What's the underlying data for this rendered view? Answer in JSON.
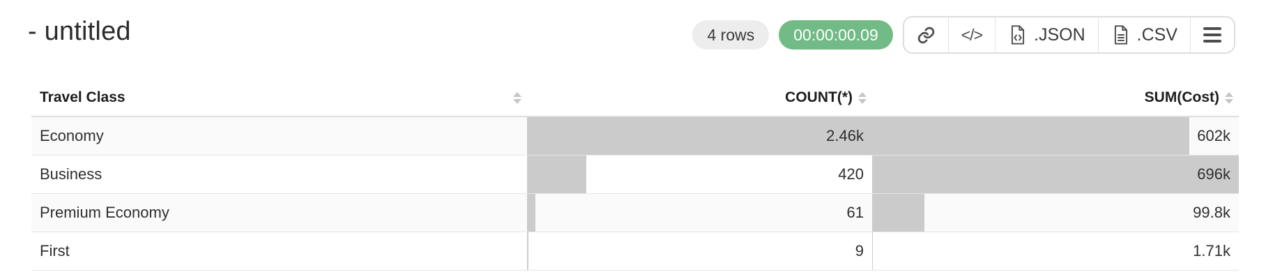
{
  "header": {
    "title": "- untitled",
    "badges": {
      "rows": "4 rows",
      "time": "00:00:00.09"
    },
    "toolbar": {
      "code_label": "</>",
      "json_label": ".JSON",
      "csv_label": ".CSV"
    }
  },
  "colors": {
    "accent_green": "#72ba86",
    "pill_gray": "#ededed",
    "bar": "#cbcbcb"
  },
  "table": {
    "columns": [
      {
        "label": "Travel Class",
        "align": "left"
      },
      {
        "label": "COUNT(*)",
        "align": "right"
      },
      {
        "label": "SUM(Cost)",
        "align": "right"
      }
    ],
    "rows": [
      {
        "class": "Economy",
        "count": 2460,
        "count_display": "2.46k",
        "sum": 602000,
        "sum_display": "602k"
      },
      {
        "class": "Business",
        "count": 420,
        "count_display": "420",
        "sum": 696000,
        "sum_display": "696k"
      },
      {
        "class": "Premium Economy",
        "count": 61,
        "count_display": "61",
        "sum": 99800,
        "sum_display": "99.8k"
      },
      {
        "class": "First",
        "count": 9,
        "count_display": "9",
        "sum": 1710,
        "sum_display": "1.71k"
      }
    ]
  }
}
